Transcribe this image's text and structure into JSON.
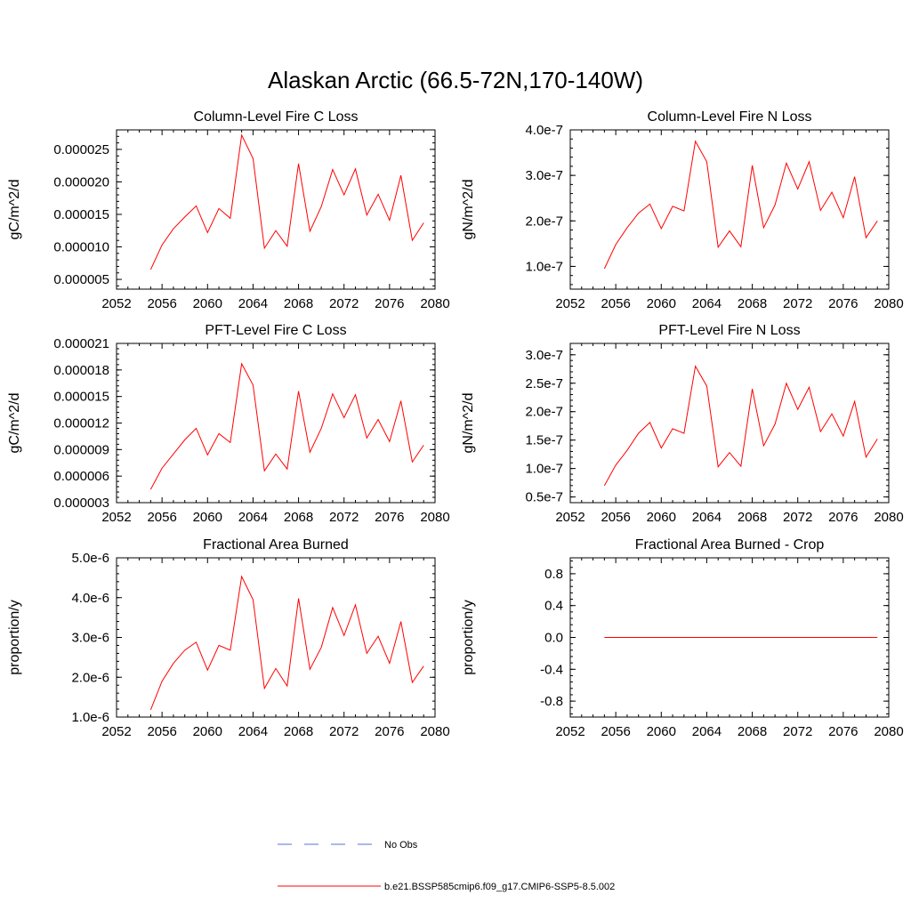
{
  "figure": {
    "title": "Alaskan Arctic (66.5-72N,170-140W)",
    "legend": {
      "placement": "bottom-center",
      "entries": [
        {
          "label": "No Obs",
          "style": "dashed",
          "color": "#5a6fd6"
        },
        {
          "label": "b.e21.BSSP585cmip6.f09_g17.CMIP6-SSP5-8.5.002",
          "style": "solid",
          "color": "#ff0000"
        }
      ]
    }
  },
  "chart_data": [
    {
      "type": "line",
      "title": "Column-Level Fire C Loss",
      "ylabel": "gC/m^2/d",
      "xlim": [
        2052,
        2080
      ],
      "ylim": [
        3.5e-06,
        2.8e-05
      ],
      "x_ticks": [
        "2052",
        "2056",
        "2060",
        "2064",
        "2068",
        "2072",
        "2076",
        "2080"
      ],
      "y_ticks": [
        5e-06,
        1e-05,
        1.5e-05,
        2e-05,
        2.5e-05
      ],
      "y_tick_labels": [
        "0.000005",
        "0.000010",
        "0.000015",
        "0.000020",
        "0.000025"
      ],
      "series": [
        {
          "color": "#ff0000",
          "x": [
            2055,
            2056,
            2057,
            2058,
            2059,
            2060,
            2061,
            2062,
            2063,
            2064,
            2065,
            2066,
            2067,
            2068,
            2069,
            2070,
            2071,
            2072,
            2073,
            2074,
            2075,
            2076,
            2077,
            2078,
            2079
          ],
          "values": [
            6.5e-06,
            1.03e-05,
            1.28e-05,
            1.46e-05,
            1.63e-05,
            1.22e-05,
            1.59e-05,
            1.44e-05,
            2.72e-05,
            2.36e-05,
            9.8e-06,
            1.25e-05,
            1.01e-05,
            2.28e-05,
            1.24e-05,
            1.62e-05,
            2.19e-05,
            1.8e-05,
            2.2e-05,
            1.49e-05,
            1.81e-05,
            1.41e-05,
            2.1e-05,
            1.1e-05,
            1.37e-05
          ]
        }
      ]
    },
    {
      "type": "line",
      "title": "Column-Level Fire N Loss",
      "ylabel": "gN/m^2/d",
      "xlim": [
        2052,
        2080
      ],
      "ylim": [
        5e-08,
        4e-07
      ],
      "x_ticks": [
        "2052",
        "2056",
        "2060",
        "2064",
        "2068",
        "2072",
        "2076",
        "2080"
      ],
      "y_ticks": [
        1e-07,
        2e-07,
        3e-07,
        4e-07
      ],
      "y_tick_labels": [
        "1.0e-7",
        "2.0e-7",
        "3.0e-7",
        "4.0e-7"
      ],
      "series": [
        {
          "color": "#ff0000",
          "x": [
            2055,
            2056,
            2057,
            2058,
            2059,
            2060,
            2061,
            2062,
            2063,
            2064,
            2065,
            2066,
            2067,
            2068,
            2069,
            2070,
            2071,
            2072,
            2073,
            2074,
            2075,
            2076,
            2077,
            2078,
            2079
          ],
          "values": [
            9.5e-08,
            1.48e-07,
            1.85e-07,
            2.17e-07,
            2.37e-07,
            1.83e-07,
            2.32e-07,
            2.22e-07,
            3.75e-07,
            3.3e-07,
            1.42e-07,
            1.78e-07,
            1.43e-07,
            3.22e-07,
            1.85e-07,
            2.35e-07,
            3.27e-07,
            2.7e-07,
            3.3e-07,
            2.23e-07,
            2.63e-07,
            2.07e-07,
            2.97e-07,
            1.63e-07,
            2e-07
          ]
        }
      ]
    },
    {
      "type": "line",
      "title": "PFT-Level Fire C Loss",
      "ylabel": "gC/m^2/d",
      "xlim": [
        2052,
        2080
      ],
      "ylim": [
        3e-06,
        2.1e-05
      ],
      "x_ticks": [
        "2052",
        "2056",
        "2060",
        "2064",
        "2068",
        "2072",
        "2076",
        "2080"
      ],
      "y_ticks": [
        3e-06,
        6e-06,
        9e-06,
        1.2e-05,
        1.5e-05,
        1.8e-05,
        2.1e-05
      ],
      "y_tick_labels": [
        "0.000003",
        "0.000006",
        "0.000009",
        "0.000012",
        "0.000015",
        "0.000018",
        "0.000021"
      ],
      "series": [
        {
          "color": "#ff0000",
          "x": [
            2055,
            2056,
            2057,
            2058,
            2059,
            2060,
            2061,
            2062,
            2063,
            2064,
            2065,
            2066,
            2067,
            2068,
            2069,
            2070,
            2071,
            2072,
            2073,
            2074,
            2075,
            2076,
            2077,
            2078,
            2079
          ],
          "values": [
            4.5e-06,
            6.9e-06,
            8.5e-06,
            1.01e-05,
            1.14e-05,
            8.4e-06,
            1.08e-05,
            9.8e-06,
            1.87e-05,
            1.63e-05,
            6.6e-06,
            8.5e-06,
            6.8e-06,
            1.56e-05,
            8.7e-06,
            1.14e-05,
            1.53e-05,
            1.26e-05,
            1.52e-05,
            1.03e-05,
            1.24e-05,
            9.9e-06,
            1.45e-05,
            7.6e-06,
            9.5e-06
          ]
        }
      ]
    },
    {
      "type": "line",
      "title": "PFT-Level Fire N Loss",
      "ylabel": "gN/m^2/d",
      "xlim": [
        2052,
        2080
      ],
      "ylim": [
        4e-08,
        3.2e-07
      ],
      "x_ticks": [
        "2052",
        "2056",
        "2060",
        "2064",
        "2068",
        "2072",
        "2076",
        "2080"
      ],
      "y_ticks": [
        5e-08,
        1e-07,
        1.5e-07,
        2e-07,
        2.5e-07,
        3e-07
      ],
      "y_tick_labels": [
        "0.5e-7",
        "1.0e-7",
        "1.5e-7",
        "2.0e-7",
        "2.5e-7",
        "3.0e-7"
      ],
      "series": [
        {
          "color": "#ff0000",
          "x": [
            2055,
            2056,
            2057,
            2058,
            2059,
            2060,
            2061,
            2062,
            2063,
            2064,
            2065,
            2066,
            2067,
            2068,
            2069,
            2070,
            2071,
            2072,
            2073,
            2074,
            2075,
            2076,
            2077,
            2078,
            2079
          ],
          "values": [
            7e-08,
            1.06e-07,
            1.32e-07,
            1.62e-07,
            1.81e-07,
            1.36e-07,
            1.7e-07,
            1.62e-07,
            2.8e-07,
            2.45e-07,
            1.03e-07,
            1.28e-07,
            1.04e-07,
            2.4e-07,
            1.4e-07,
            1.78e-07,
            2.5e-07,
            2.04e-07,
            2.43e-07,
            1.65e-07,
            1.96e-07,
            1.57e-07,
            2.18e-07,
            1.2e-07,
            1.52e-07
          ]
        }
      ]
    },
    {
      "type": "line",
      "title": "Fractional Area Burned",
      "ylabel": "proportion/y",
      "xlim": [
        2052,
        2080
      ],
      "ylim": [
        1e-06,
        5e-06
      ],
      "x_ticks": [
        "2052",
        "2056",
        "2060",
        "2064",
        "2068",
        "2072",
        "2076",
        "2080"
      ],
      "y_ticks": [
        1e-06,
        2e-06,
        3e-06,
        4e-06,
        5e-06
      ],
      "y_tick_labels": [
        "1.0e-6",
        "2.0e-6",
        "3.0e-6",
        "4.0e-6",
        "5.0e-6"
      ],
      "series": [
        {
          "color": "#ff0000",
          "x": [
            2055,
            2056,
            2057,
            2058,
            2059,
            2060,
            2061,
            2062,
            2063,
            2064,
            2065,
            2066,
            2067,
            2068,
            2069,
            2070,
            2071,
            2072,
            2073,
            2074,
            2075,
            2076,
            2077,
            2078,
            2079
          ],
          "values": [
            1.18e-06,
            1.9e-06,
            2.35e-06,
            2.68e-06,
            2.88e-06,
            2.18e-06,
            2.8e-06,
            2.68e-06,
            4.53e-06,
            3.95e-06,
            1.72e-06,
            2.22e-06,
            1.78e-06,
            3.98e-06,
            2.2e-06,
            2.75e-06,
            3.75e-06,
            3.05e-06,
            3.82e-06,
            2.6e-06,
            3.03e-06,
            2.35e-06,
            3.4e-06,
            1.87e-06,
            2.28e-06
          ]
        }
      ]
    },
    {
      "type": "line",
      "title": "Fractional Area Burned - Crop",
      "ylabel": "proportion/y",
      "xlim": [
        2052,
        2080
      ],
      "ylim": [
        -1.0,
        1.0
      ],
      "x_ticks": [
        "2052",
        "2056",
        "2060",
        "2064",
        "2068",
        "2072",
        "2076",
        "2080"
      ],
      "y_ticks": [
        -0.8,
        -0.4,
        0.0,
        0.4,
        0.8
      ],
      "y_tick_labels": [
        "-0.8",
        "-0.4",
        "0.0",
        "0.4",
        "0.8"
      ],
      "series": [
        {
          "color": "#ff0000",
          "x": [
            2055,
            2056,
            2057,
            2058,
            2059,
            2060,
            2061,
            2062,
            2063,
            2064,
            2065,
            2066,
            2067,
            2068,
            2069,
            2070,
            2071,
            2072,
            2073,
            2074,
            2075,
            2076,
            2077,
            2078,
            2079
          ],
          "values": [
            0,
            0,
            0,
            0,
            0,
            0,
            0,
            0,
            0,
            0,
            0,
            0,
            0,
            0,
            0,
            0,
            0,
            0,
            0,
            0,
            0,
            0,
            0,
            0,
            0
          ]
        }
      ]
    }
  ]
}
